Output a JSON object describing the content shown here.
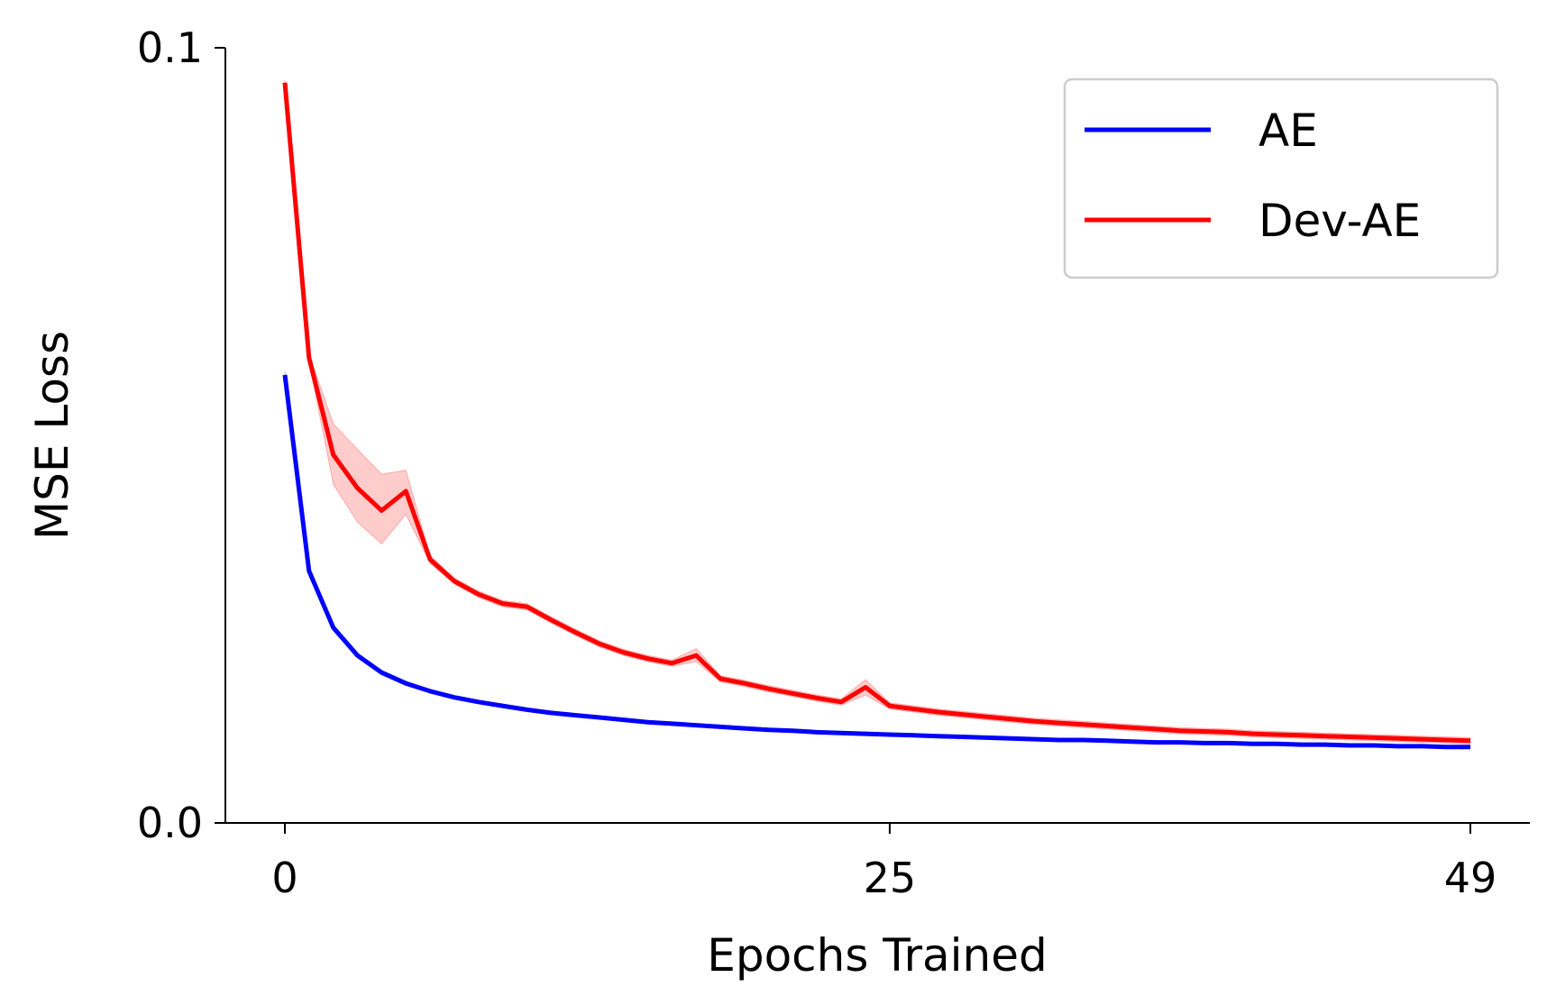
{
  "chart_data": {
    "type": "line",
    "title": "",
    "xlabel": "Epochs Trained",
    "ylabel": "MSE Loss",
    "xlim": [
      0,
      49
    ],
    "ylim": [
      0.0,
      0.1
    ],
    "xticks": [
      0,
      25,
      49
    ],
    "xtick_labels": [
      "0",
      "25",
      "49"
    ],
    "yticks": [
      0.0,
      0.1
    ],
    "ytick_labels": [
      "0.0",
      "0.1"
    ],
    "grid": false,
    "legend_position": "top-right",
    "x": [
      0,
      1,
      2,
      3,
      4,
      5,
      6,
      7,
      8,
      9,
      10,
      11,
      12,
      13,
      14,
      15,
      16,
      17,
      18,
      19,
      20,
      21,
      22,
      23,
      24,
      25,
      26,
      27,
      28,
      29,
      30,
      31,
      32,
      33,
      34,
      35,
      36,
      37,
      38,
      39,
      40,
      41,
      42,
      43,
      44,
      45,
      46,
      47,
      48,
      49
    ],
    "series": [
      {
        "name": "AE",
        "color": "#0000ff",
        "values": [
          0.0578,
          0.0325,
          0.0252,
          0.0216,
          0.0194,
          0.018,
          0.017,
          0.0162,
          0.0156,
          0.0151,
          0.0146,
          0.0142,
          0.0139,
          0.0136,
          0.0133,
          0.013,
          0.0128,
          0.0126,
          0.0124,
          0.0122,
          0.012,
          0.0119,
          0.0117,
          0.0116,
          0.0115,
          0.0114,
          0.0113,
          0.0112,
          0.0111,
          0.011,
          0.0109,
          0.0108,
          0.0107,
          0.0107,
          0.0106,
          0.0105,
          0.0104,
          0.0104,
          0.0103,
          0.0103,
          0.0102,
          0.0102,
          0.0101,
          0.0101,
          0.01,
          0.01,
          0.0099,
          0.0099,
          0.0098,
          0.0098
        ],
        "band_lower": [
          0.0575,
          0.0322,
          0.025,
          0.0214,
          0.0192,
          0.0178,
          0.0168,
          0.016,
          0.0154,
          0.0149,
          0.0145,
          0.0141,
          0.0138,
          0.0135,
          0.0132,
          0.0129,
          0.0127,
          0.0125,
          0.0123,
          0.0121,
          0.0119,
          0.0118,
          0.0116,
          0.0115,
          0.0114,
          0.0113,
          0.0112,
          0.0111,
          0.011,
          0.0109,
          0.0108,
          0.0107,
          0.0106,
          0.0106,
          0.0105,
          0.0104,
          0.0103,
          0.0103,
          0.0102,
          0.0102,
          0.0101,
          0.0101,
          0.01,
          0.01,
          0.0099,
          0.0099,
          0.0098,
          0.0098,
          0.0097,
          0.0097
        ],
        "band_upper": [
          0.0582,
          0.0328,
          0.0255,
          0.0219,
          0.0197,
          0.0183,
          0.0172,
          0.0164,
          0.0158,
          0.0153,
          0.0148,
          0.0144,
          0.0141,
          0.0138,
          0.0135,
          0.0132,
          0.013,
          0.0128,
          0.0126,
          0.0124,
          0.0122,
          0.012,
          0.0118,
          0.0117,
          0.0116,
          0.0115,
          0.0114,
          0.0113,
          0.0112,
          0.0111,
          0.011,
          0.0109,
          0.0108,
          0.0108,
          0.0107,
          0.0106,
          0.0105,
          0.0105,
          0.0104,
          0.0104,
          0.0103,
          0.0103,
          0.0102,
          0.0102,
          0.0101,
          0.0101,
          0.01,
          0.01,
          0.0099,
          0.0099
        ]
      },
      {
        "name": "Dev-AE",
        "color": "#ff0000",
        "values": [
          0.0955,
          0.06,
          0.0475,
          0.0432,
          0.0403,
          0.0428,
          0.034,
          0.0312,
          0.0295,
          0.0283,
          0.0279,
          0.0262,
          0.0246,
          0.0231,
          0.022,
          0.0212,
          0.0206,
          0.0216,
          0.0186,
          0.018,
          0.0173,
          0.0167,
          0.0161,
          0.0156,
          0.0175,
          0.0151,
          0.0147,
          0.0143,
          0.014,
          0.0137,
          0.0134,
          0.0131,
          0.0129,
          0.0127,
          0.0125,
          0.0123,
          0.0121,
          0.0119,
          0.0118,
          0.0117,
          0.0115,
          0.0114,
          0.0113,
          0.0112,
          0.0111,
          0.011,
          0.0109,
          0.0108,
          0.0107,
          0.0106
        ],
        "band_lower": [
          0.0952,
          0.0595,
          0.0437,
          0.0388,
          0.036,
          0.0398,
          0.0335,
          0.0308,
          0.0291,
          0.0279,
          0.0275,
          0.0258,
          0.0242,
          0.0227,
          0.0216,
          0.0208,
          0.0202,
          0.0208,
          0.0182,
          0.0176,
          0.0169,
          0.0163,
          0.0157,
          0.0152,
          0.0165,
          0.0147,
          0.0143,
          0.0139,
          0.0136,
          0.0133,
          0.013,
          0.0127,
          0.0125,
          0.0123,
          0.0121,
          0.0119,
          0.0117,
          0.0115,
          0.0114,
          0.0113,
          0.0111,
          0.011,
          0.0109,
          0.0108,
          0.0107,
          0.0106,
          0.0105,
          0.0104,
          0.0103,
          0.0102
        ],
        "band_upper": [
          0.0958,
          0.0605,
          0.0515,
          0.0482,
          0.045,
          0.0455,
          0.0345,
          0.0316,
          0.0299,
          0.0287,
          0.0283,
          0.0266,
          0.025,
          0.0235,
          0.0224,
          0.0216,
          0.021,
          0.0225,
          0.019,
          0.0184,
          0.0177,
          0.0171,
          0.0165,
          0.016,
          0.0185,
          0.0155,
          0.0151,
          0.0147,
          0.0144,
          0.0141,
          0.0138,
          0.0135,
          0.0133,
          0.0131,
          0.0129,
          0.0127,
          0.0125,
          0.0123,
          0.0122,
          0.0121,
          0.0119,
          0.0118,
          0.0117,
          0.0116,
          0.0115,
          0.0114,
          0.0113,
          0.0112,
          0.0111,
          0.011
        ]
      }
    ]
  }
}
